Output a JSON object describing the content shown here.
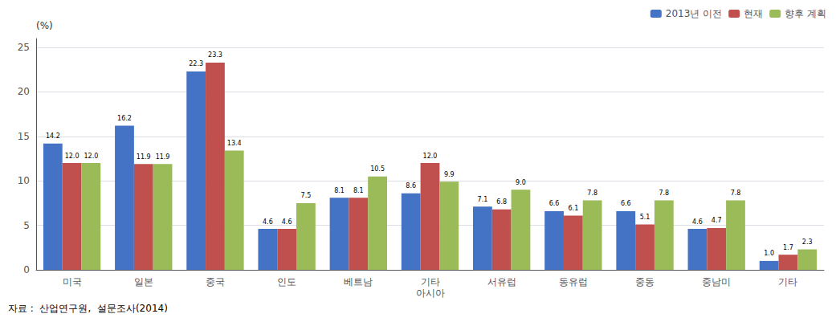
{
  "chart_data": {
    "type": "bar",
    "ylabel": "(%)",
    "annotations": [
      "자료 :  산업연구원,  설문조사(2014)"
    ],
    "categories": [
      "미국",
      "일본",
      "중국",
      "인도",
      "베트남",
      "기타\n아시아",
      "서유럽",
      "동유럽",
      "중동",
      "중남미",
      "기타"
    ],
    "series": [
      {
        "name": "2013년 이전",
        "color": "#4472C4",
        "values": [
          14.2,
          16.2,
          22.3,
          4.6,
          8.1,
          8.6,
          7.1,
          6.6,
          6.6,
          4.6,
          1.0
        ],
        "value_labels": [
          "14.2",
          "16.2",
          "22.3",
          "4.6",
          "8.1",
          "8.6",
          "7.1",
          "6.6",
          "6.6",
          "4.6",
          "1.0"
        ]
      },
      {
        "name": "현재",
        "color": "#C0504D",
        "values": [
          12.0,
          11.9,
          23.3,
          4.6,
          8.1,
          12.0,
          6.8,
          6.1,
          5.1,
          4.7,
          1.7
        ],
        "value_labels": [
          "12.0",
          "11.9",
          "23.3",
          "4.6",
          "8.1",
          "12.0",
          "6.8",
          "6.1",
          "5.1",
          "4.7",
          "1.7"
        ]
      },
      {
        "name": "향후 계획",
        "color": "#9BBB59",
        "values": [
          12.0,
          11.9,
          13.4,
          7.5,
          10.5,
          9.9,
          9.0,
          7.8,
          7.8,
          7.8,
          2.3
        ],
        "value_labels": [
          "12.0",
          "11.9",
          "13.4",
          "7.5",
          "10.5",
          "9.9",
          "9.0",
          "7.8",
          "7.8",
          "7.8",
          "2.3"
        ]
      }
    ],
    "ylim": [
      0,
      26
    ],
    "yticks": [
      0,
      5,
      10,
      15,
      20,
      25
    ],
    "grid": true,
    "legend": "upper right",
    "data_labels": true
  }
}
